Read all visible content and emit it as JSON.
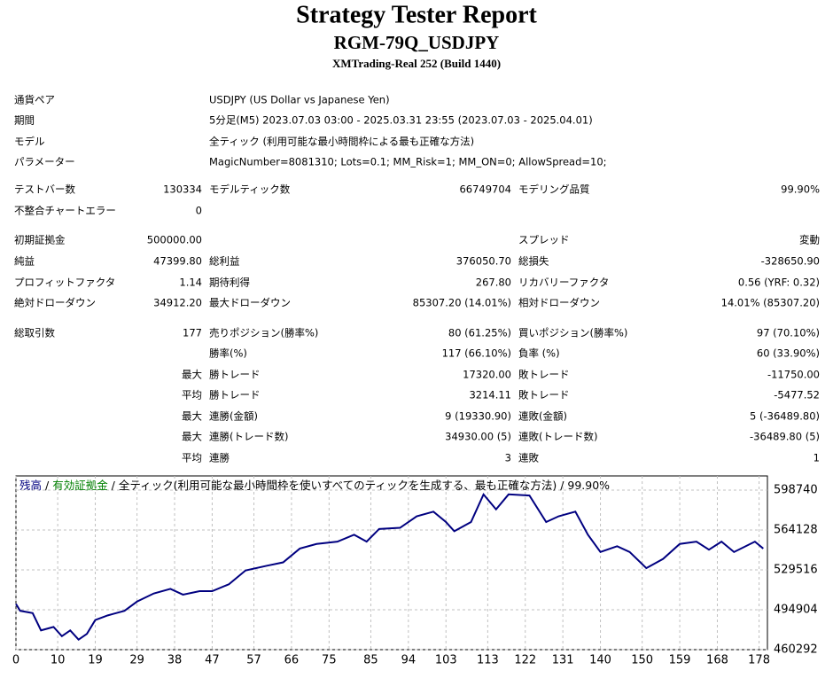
{
  "header": {
    "title": "Strategy Tester Report",
    "subtitle": "RGM-79Q_USDJPY",
    "build": "XMTrading-Real 252 (Build 1440)"
  },
  "info": [
    [
      "通貨ペア",
      "USDJPY (US Dollar vs Japanese Yen)"
    ],
    [
      "期間",
      "5分足(M5) 2023.07.03 03:00 - 2025.03.31 23:55 (2023.07.03 - 2025.04.01)"
    ],
    [
      "モデル",
      "全ティック (利用可能な最小時間枠による最も正確な方法)"
    ],
    [
      "パラメーター",
      "MagicNumber=8081310; Lots=0.1; MM_Risk=1; MM_ON=0; AllowSpread=10;"
    ]
  ],
  "stats": [
    {
      "l1": "テストバー数",
      "v1": "130334",
      "l2": "モデルティック数",
      "v2": "66749704",
      "l3": "モデリング品質",
      "v3": "99.90%"
    },
    {
      "l1": "不整合チャートエラー",
      "v1": "0"
    },
    {
      "l1": "初期証拠金",
      "v1": "500000.00",
      "l3": "スプレッド",
      "v3": "変動"
    },
    {
      "l1": "純益",
      "v1": "47399.80",
      "l2": "総利益",
      "v2": "376050.70",
      "l3": "総損失",
      "v3": "-328650.90"
    },
    {
      "l1": "プロフィットファクタ",
      "v1": "1.14",
      "l2": "期待利得",
      "v2": "267.80",
      "l3": "リカバリーファクタ",
      "v3": "0.56 (YRF: 0.32)"
    },
    {
      "l1": "絶対ドローダウン",
      "v1": "34912.20",
      "l2": "最大ドローダウン",
      "v2": "85307.20 (14.01%)",
      "l3": "相対ドローダウン",
      "v3": "14.01% (85307.20)"
    },
    {
      "l1": "総取引数",
      "v1": "177",
      "l2": "売りポジション(勝率%)",
      "v2": "80 (61.25%)",
      "l3": "買いポジション(勝率%)",
      "v3": "97 (70.10%)"
    },
    {
      "l2": "勝率(%)",
      "v2": "117 (66.10%)",
      "l3": "負率 (%)",
      "v3": "60 (33.90%)"
    },
    {
      "v1": "最大",
      "l2": "勝トレード",
      "v2": "17320.00",
      "l3": "敗トレード",
      "v3": "-11750.00"
    },
    {
      "v1": "平均",
      "l2": "勝トレード",
      "v2": "3214.11",
      "l3": "敗トレード",
      "v3": "-5477.52"
    },
    {
      "v1": "最大",
      "l2": "連勝(金額)",
      "v2": "9 (19330.90)",
      "l3": "連敗(金額)",
      "v3": "5 (-36489.80)"
    },
    {
      "v1": "最大",
      "l2": "連勝(トレード数)",
      "v2": "34930.00 (5)",
      "l3": "連敗(トレード数)",
      "v3": "-36489.80 (5)"
    },
    {
      "v1": "平均",
      "l2": "連勝",
      "v2": "3",
      "l3": "連敗",
      "v3": "1"
    }
  ],
  "chart_data": {
    "type": "line",
    "color": "#000080",
    "legend": [
      {
        "text": "残高",
        "color": "#000080"
      },
      {
        "text": " / ",
        "color": "#000000"
      },
      {
        "text": "有効証拠金",
        "color": "#008000"
      },
      {
        "text": " / 全ティック(利用可能な最小時間枠を使いすべてのティックを生成する、最も正確な方法) / 99.90%",
        "color": "#000000"
      }
    ],
    "x": [
      0,
      1,
      4,
      6,
      9,
      11,
      13,
      15,
      17,
      19,
      22,
      26,
      29,
      33,
      37,
      40,
      44,
      47,
      51,
      55,
      60,
      64,
      68,
      72,
      77,
      81,
      84,
      87,
      92,
      96,
      100,
      103,
      105,
      109,
      112,
      115,
      118,
      123,
      127,
      130,
      134,
      137,
      140,
      144,
      147,
      151,
      155,
      159,
      163,
      166,
      169,
      172,
      177,
      179
    ],
    "values": [
      500000,
      494000,
      492000,
      477000,
      480000,
      472000,
      477000,
      469000,
      474000,
      486000,
      490000,
      494000,
      502000,
      509000,
      513000,
      508000,
      511000,
      511000,
      517000,
      529000,
      533000,
      536000,
      548000,
      552000,
      554000,
      560000,
      554000,
      565000,
      566000,
      576000,
      580000,
      571000,
      563000,
      571000,
      595000,
      582000,
      595000,
      594000,
      571000,
      576000,
      580000,
      560000,
      545000,
      550000,
      545000,
      531000,
      539000,
      552000,
      554000,
      547000,
      554000,
      545000,
      554000,
      548000
    ],
    "xlim": [
      0,
      180
    ],
    "ylim": [
      460292,
      611000
    ],
    "xticks": [
      0,
      10,
      19,
      29,
      38,
      47,
      57,
      66,
      75,
      85,
      94,
      103,
      113,
      122,
      131,
      140,
      150,
      159,
      168,
      178
    ],
    "yticks": [
      460292,
      494904,
      529516,
      564128,
      598740
    ],
    "grid": true
  }
}
